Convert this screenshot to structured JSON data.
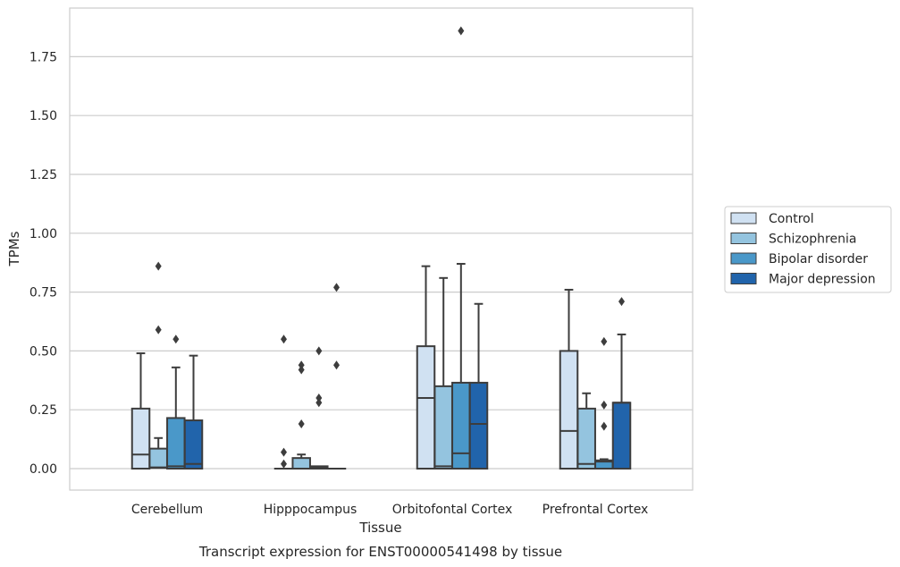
{
  "chart_data": {
    "type": "box",
    "xlabel": "Tissue",
    "ylabel": "TPMs",
    "caption": "Transcript expression for ENST00000541498 by tissue",
    "ylim": [
      -0.09,
      1.95
    ],
    "yticks": [
      0.0,
      0.25,
      0.5,
      0.75,
      1.0,
      1.25,
      1.5,
      1.75
    ],
    "ytick_labels": [
      "0.00",
      "0.25",
      "0.50",
      "0.75",
      "1.00",
      "1.25",
      "1.50",
      "1.75"
    ],
    "grid": "horizontal",
    "legend_position": "right",
    "categories": [
      "Cerebellum",
      "Hipppocampus",
      "Orbitofontal Cortex",
      "Prefrontal Cortex"
    ],
    "series": [
      {
        "name": "Control",
        "color": "#d0e1f2",
        "boxes": [
          {
            "low": 0.0,
            "q1": 0.0,
            "median": 0.06,
            "q3": 0.255,
            "high": 0.49,
            "outliers": []
          },
          {
            "low": 0.0,
            "q1": 0.0,
            "median": 0.0,
            "q3": 0.0,
            "high": 0.0,
            "outliers": [
              0.55,
              0.07,
              0.02
            ]
          },
          {
            "low": 0.0,
            "q1": 0.0,
            "median": 0.3,
            "q3": 0.52,
            "high": 0.86,
            "outliers": []
          },
          {
            "low": 0.0,
            "q1": 0.0,
            "median": 0.16,
            "q3": 0.5,
            "high": 0.76,
            "outliers": []
          }
        ]
      },
      {
        "name": "Schizophrenia",
        "color": "#94c4df",
        "boxes": [
          {
            "low": 0.0,
            "q1": 0.003,
            "median": 0.005,
            "q3": 0.085,
            "high": 0.13,
            "outliers": [
              0.86,
              0.59
            ]
          },
          {
            "low": 0.0,
            "q1": 0.0,
            "median": 0.0,
            "q3": 0.045,
            "high": 0.06,
            "outliers": [
              0.44,
              0.42,
              0.19
            ]
          },
          {
            "low": 0.0,
            "q1": 0.0,
            "median": 0.01,
            "q3": 0.35,
            "high": 0.81,
            "outliers": []
          },
          {
            "low": 0.0,
            "q1": 0.0,
            "median": 0.02,
            "q3": 0.255,
            "high": 0.32,
            "outliers": []
          }
        ]
      },
      {
        "name": "Bipolar disorder",
        "color": "#4a98c9",
        "boxes": [
          {
            "low": 0.0,
            "q1": 0.0,
            "median": 0.01,
            "q3": 0.215,
            "high": 0.43,
            "outliers": [
              0.55
            ]
          },
          {
            "low": 0.0,
            "q1": 0.0,
            "median": 0.005,
            "q3": 0.01,
            "high": 0.01,
            "outliers": [
              0.5,
              0.3,
              0.28
            ]
          },
          {
            "low": 0.0,
            "q1": 0.0,
            "median": 0.065,
            "q3": 0.365,
            "high": 0.87,
            "outliers": [
              1.86
            ]
          },
          {
            "low": 0.0,
            "q1": 0.0,
            "median": 0.03,
            "q3": 0.035,
            "high": 0.04,
            "outliers": [
              0.54,
              0.27,
              0.18
            ]
          }
        ]
      },
      {
        "name": "Major depression",
        "color": "#2164ab",
        "boxes": [
          {
            "low": 0.0,
            "q1": 0.0,
            "median": 0.02,
            "q3": 0.205,
            "high": 0.48,
            "outliers": []
          },
          {
            "low": 0.0,
            "q1": 0.0,
            "median": 0.0,
            "q3": 0.0,
            "high": 0.0,
            "outliers": [
              0.77,
              0.44
            ]
          },
          {
            "low": 0.0,
            "q1": 0.0,
            "median": 0.19,
            "q3": 0.365,
            "high": 0.7,
            "outliers": []
          },
          {
            "low": 0.0,
            "q1": 0.0,
            "median": 0.28,
            "q3": 0.28,
            "high": 0.57,
            "outliers": [
              0.71
            ]
          }
        ]
      }
    ]
  }
}
